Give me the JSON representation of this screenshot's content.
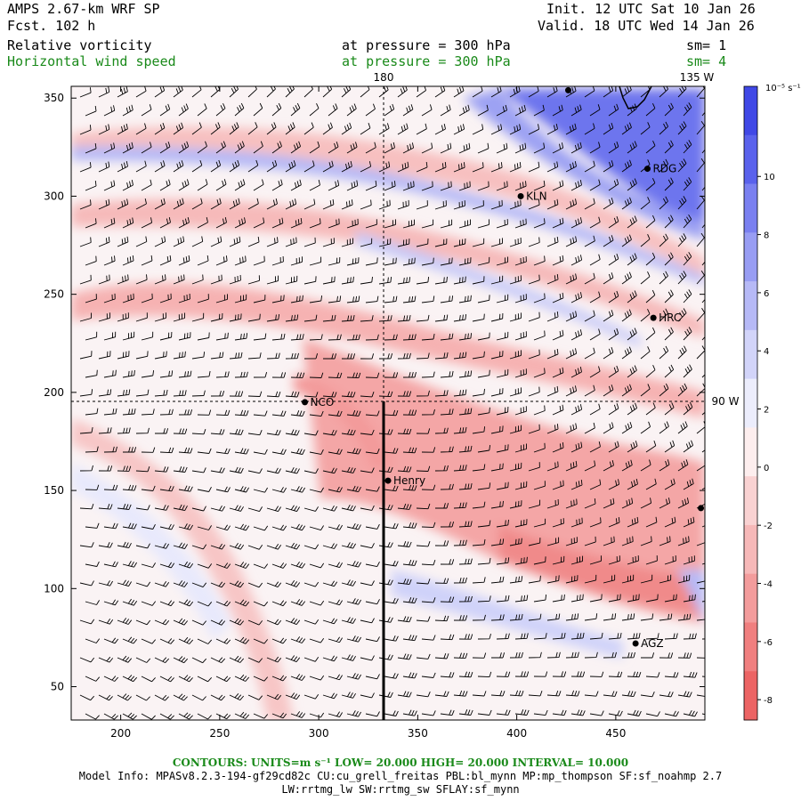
{
  "header": {
    "model": "AMPS 2.67-km WRF SP",
    "forecast": "Fcst.  102 h",
    "init": "Init. 12 UTC Sat 10 Jan 26",
    "valid": "Valid. 18 UTC Wed 14 Jan 26",
    "field1": {
      "name": "Relative vorticity",
      "level": "at pressure =  300 hPa",
      "smooth": "sm= 1"
    },
    "field2": {
      "name": "Horizontal wind speed",
      "level": "at pressure =  300 hPa",
      "smooth": "sm= 4"
    }
  },
  "map": {
    "meridian_labels": [
      "180",
      "135 W"
    ],
    "parallel_label": "90 W",
    "x_ticks": [
      200,
      250,
      300,
      350,
      400,
      450
    ],
    "y_ticks": [
      50,
      100,
      150,
      200,
      250,
      300,
      350
    ],
    "xlim": [
      175,
      495
    ],
    "ylim": [
      33,
      356
    ],
    "stations": [
      {
        "name": "RDG",
        "x": 466,
        "y": 314
      },
      {
        "name": "KLN",
        "x": 402,
        "y": 300
      },
      {
        "name": "HRC",
        "x": 469,
        "y": 238
      },
      {
        "name": "NCO",
        "x": 293,
        "y": 195
      },
      {
        "name": "Henry",
        "x": 335,
        "y": 155
      },
      {
        "name": "AGZ",
        "x": 460,
        "y": 72
      }
    ],
    "unlabeled_points": [
      {
        "x": 426,
        "y": 354
      },
      {
        "x": 493,
        "y": 141
      }
    ]
  },
  "colorbar": {
    "units": "10⁻⁵ s⁻¹",
    "labels": [
      "10",
      "8",
      "6",
      "4",
      "2",
      "0",
      "-2",
      "-4",
      "-6",
      "-8"
    ],
    "colors": [
      "#4048e6",
      "#5a62ec",
      "#7a80f0",
      "#989df3",
      "#b6b9f6",
      "#d2d4f9",
      "#ecedfc",
      "#fdeeee",
      "#f9d2d2",
      "#f6b8b8",
      "#f39c9c",
      "#f07f7f",
      "#ec6464"
    ]
  },
  "footer": {
    "contours": "CONTOURS:  UNITS=m s⁻¹  LOW=  20.000        HIGH=  20.000        INTERVAL=   10.000",
    "model_info": "Model Info: MPASv8.2.3-194-gf29cd82c CU:cu_grell_freitas PBL:bl_mynn MP:mp_thompson SF:sf_noahmp 2.7",
    "physics": "LW:rrtmg_lw SW:rrtmg_sw SFLAY:sf_mynn"
  }
}
